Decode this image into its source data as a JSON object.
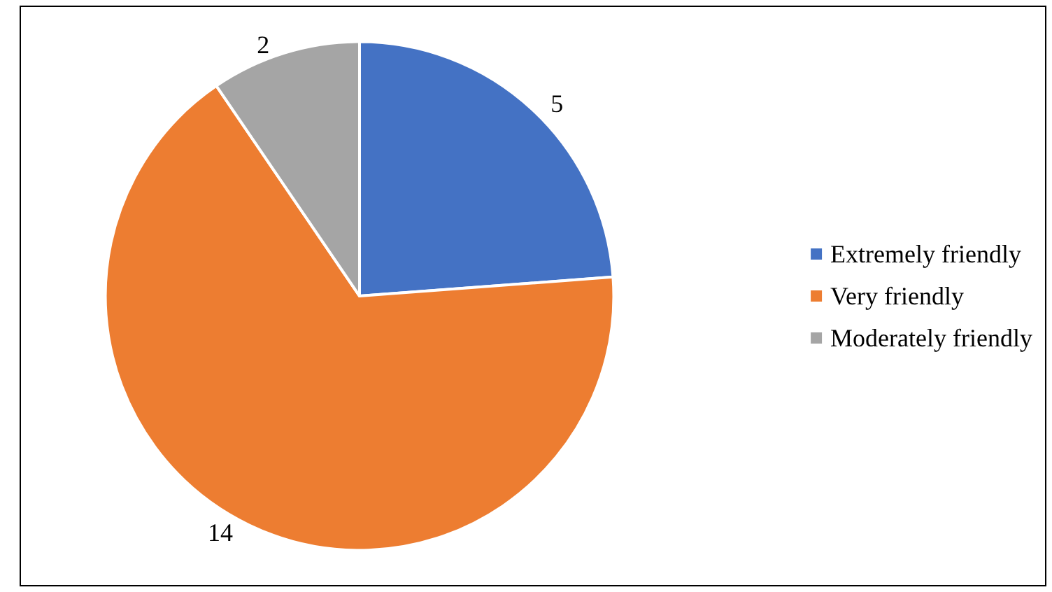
{
  "chart_data": {
    "type": "pie",
    "categories": [
      "Extremely friendly",
      "Very friendly",
      "Moderately friendly"
    ],
    "values": [
      5,
      14,
      2
    ],
    "colors": [
      "#4472c4",
      "#ed7d31",
      "#a5a5a5"
    ],
    "data_labels": true,
    "legend": "right"
  }
}
